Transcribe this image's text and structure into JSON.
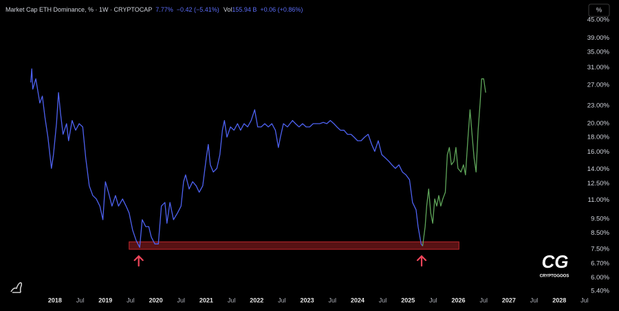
{
  "chart_data": {
    "type": "line",
    "title": "Market Cap ETH Dominance, % · 1W · CRYPTOCAP",
    "price": "7.77%",
    "change": "−0.42 (−5.41%)",
    "volume_label": "Vol",
    "volume": "155.94 B",
    "volume_change": "+0.06 (+0.86%)",
    "scale_button": "%",
    "watermark": {
      "logo": "CG",
      "name": "CRYPTOGOOS"
    },
    "yscale": "log",
    "grid": false,
    "xlim": [
      2016.91,
      2028.57
    ],
    "ylim": [
      5.23,
      51.2
    ],
    "xticks": [
      2018,
      {
        "value": 2018.5,
        "label": "Jul"
      },
      2019,
      {
        "value": 2019.5,
        "label": "Jul"
      },
      2020,
      {
        "value": 2020.5,
        "label": "Jul"
      },
      2021,
      {
        "value": 2021.5,
        "label": "Jul"
      },
      2022,
      {
        "value": 2022.5,
        "label": "Jul"
      },
      2023,
      {
        "value": 2023.5,
        "label": "Jul"
      },
      2024,
      {
        "value": 2024.5,
        "label": "Jul"
      },
      2025,
      {
        "value": 2025.5,
        "label": "Jul"
      },
      2026,
      {
        "value": 2026.5,
        "label": "Jul"
      },
      2027,
      {
        "value": 2027.5,
        "label": "Jul"
      },
      2028,
      {
        "value": 2028.5,
        "label": "Jul"
      }
    ],
    "yticks": [
      {
        "value": 45,
        "label": "45.00%"
      },
      {
        "value": 39,
        "label": "39.00%"
      },
      {
        "value": 35,
        "label": "35.00%"
      },
      {
        "value": 31,
        "label": "31.00%"
      },
      {
        "value": 27,
        "label": "27.00%"
      },
      {
        "value": 23,
        "label": "23.00%"
      },
      {
        "value": 20,
        "label": "20.00%"
      },
      {
        "value": 18,
        "label": "18.00%"
      },
      {
        "value": 16,
        "label": "16.00%"
      },
      {
        "value": 14,
        "label": "14.00%"
      },
      {
        "value": 12.5,
        "label": "12.50%"
      },
      {
        "value": 11,
        "label": "11.00%"
      },
      {
        "value": 9.5,
        "label": "9.50%"
      },
      {
        "value": 8.5,
        "label": "8.50%"
      },
      {
        "value": 7.5,
        "label": "7.50%"
      },
      {
        "value": 6.7,
        "label": "6.70%"
      },
      {
        "value": 6,
        "label": "6.00%"
      },
      {
        "value": 5.4,
        "label": "5.40%"
      }
    ],
    "support_zone": {
      "x": [
        2019.47,
        2026.01
      ],
      "y": [
        7.49,
        7.94
      ],
      "color": "#c0272d",
      "markers_x": [
        2019.66,
        2025.27
      ]
    },
    "series": [
      {
        "color": "#4e62f2",
        "x": [
          2017.52,
          2017.54,
          2017.56,
          2017.62,
          2017.7,
          2017.75,
          2017.8,
          2017.86,
          2017.93,
          2017.97,
          2018.03,
          2018.07,
          2018.11,
          2018.16,
          2018.23,
          2018.27,
          2018.34,
          2018.41,
          2018.48,
          2018.55,
          2018.61,
          2018.68,
          2018.75,
          2018.82,
          2018.89,
          2018.95,
          2019.0,
          2019.06,
          2019.13,
          2019.2,
          2019.26,
          2019.34,
          2019.41,
          2019.47,
          2019.54,
          2019.61,
          2019.68,
          2019.73,
          2019.8,
          2019.86,
          2019.91,
          2019.98,
          2020.05,
          2020.11,
          2020.18,
          2020.22,
          2020.28,
          2020.35,
          2020.43,
          2020.5,
          2020.55,
          2020.59,
          2020.66,
          2020.73,
          2020.8,
          2020.86,
          2020.93,
          2021.0,
          2021.04,
          2021.08,
          2021.14,
          2021.21,
          2021.27,
          2021.32,
          2021.36,
          2021.41,
          2021.48,
          2021.55,
          2021.62,
          2021.68,
          2021.75,
          2021.82,
          2021.89,
          2021.96,
          2022.02,
          2022.09,
          2022.16,
          2022.23,
          2022.3,
          2022.37,
          2022.43,
          2022.47,
          2022.53,
          2022.61,
          2022.71,
          2022.77,
          2022.84,
          2022.91,
          2022.98,
          2023.05,
          2023.12,
          2023.18,
          2023.25,
          2023.32,
          2023.39,
          2023.46,
          2023.53,
          2023.59,
          2023.66,
          2023.73,
          2023.8,
          2023.87,
          2023.93,
          2024.0,
          2024.07,
          2024.14,
          2024.21,
          2024.28,
          2024.34,
          2024.41,
          2024.48,
          2024.55,
          2024.62,
          2024.68,
          2024.75,
          2024.82,
          2024.89,
          2024.96,
          2025.03,
          2025.09,
          2025.16,
          2025.2,
          2025.26,
          2025.29
        ],
        "values": [
          27.6,
          30.7,
          26.2,
          28.4,
          23.5,
          24.8,
          21.1,
          18.0,
          14.1,
          15.7,
          20.0,
          25.5,
          21.7,
          18.4,
          20.0,
          17.5,
          20.5,
          19.0,
          20.0,
          19.5,
          15.3,
          12.3,
          11.4,
          11.1,
          10.5,
          9.44,
          12.7,
          11.7,
          10.5,
          11.4,
          10.5,
          11.1,
          10.5,
          9.95,
          8.7,
          8.02,
          7.6,
          9.44,
          8.94,
          8.94,
          8.24,
          7.81,
          7.81,
          10.5,
          10.8,
          9.18,
          10.8,
          9.44,
          9.95,
          10.5,
          12.7,
          13.4,
          12.0,
          12.7,
          12.3,
          11.7,
          12.3,
          15.3,
          17.0,
          14.5,
          13.7,
          14.1,
          15.7,
          19.0,
          20.5,
          18.0,
          19.5,
          19.0,
          20.0,
          19.0,
          20.0,
          19.5,
          20.5,
          22.3,
          19.5,
          19.5,
          20.0,
          19.5,
          20.0,
          19.0,
          16.6,
          18.0,
          20.0,
          19.5,
          20.5,
          20.0,
          19.5,
          20.0,
          19.5,
          19.5,
          20.0,
          20.0,
          20.0,
          20.2,
          20.0,
          20.5,
          20.0,
          19.5,
          19.0,
          19.0,
          18.4,
          18.4,
          18.0,
          17.5,
          17.5,
          18.0,
          18.4,
          17.0,
          16.1,
          17.5,
          15.7,
          15.3,
          14.9,
          14.5,
          14.1,
          14.5,
          13.7,
          13.4,
          12.9,
          10.8,
          10.2,
          8.94,
          7.81,
          7.68
        ]
      },
      {
        "color": "#5fa65a",
        "x": [
          2025.29,
          2025.34,
          2025.37,
          2025.41,
          2025.45,
          2025.49,
          2025.53,
          2025.57,
          2025.61,
          2025.65,
          2025.69,
          2025.74,
          2025.78,
          2025.82,
          2025.86,
          2025.91,
          2025.95,
          2025.99,
          2026.05,
          2026.1,
          2026.14,
          2026.19,
          2026.23,
          2026.27,
          2026.31,
          2026.35,
          2026.39,
          2026.43,
          2026.46,
          2026.5,
          2026.54
        ],
        "values": [
          7.68,
          8.94,
          10.5,
          12.0,
          9.95,
          9.18,
          11.1,
          10.5,
          11.4,
          10.5,
          11.1,
          11.7,
          15.7,
          16.6,
          14.5,
          14.9,
          16.6,
          14.1,
          13.7,
          14.5,
          13.4,
          18.0,
          22.3,
          18.4,
          15.3,
          13.7,
          19.0,
          23.5,
          28.4,
          28.4,
          25.5
        ]
      }
    ]
  }
}
